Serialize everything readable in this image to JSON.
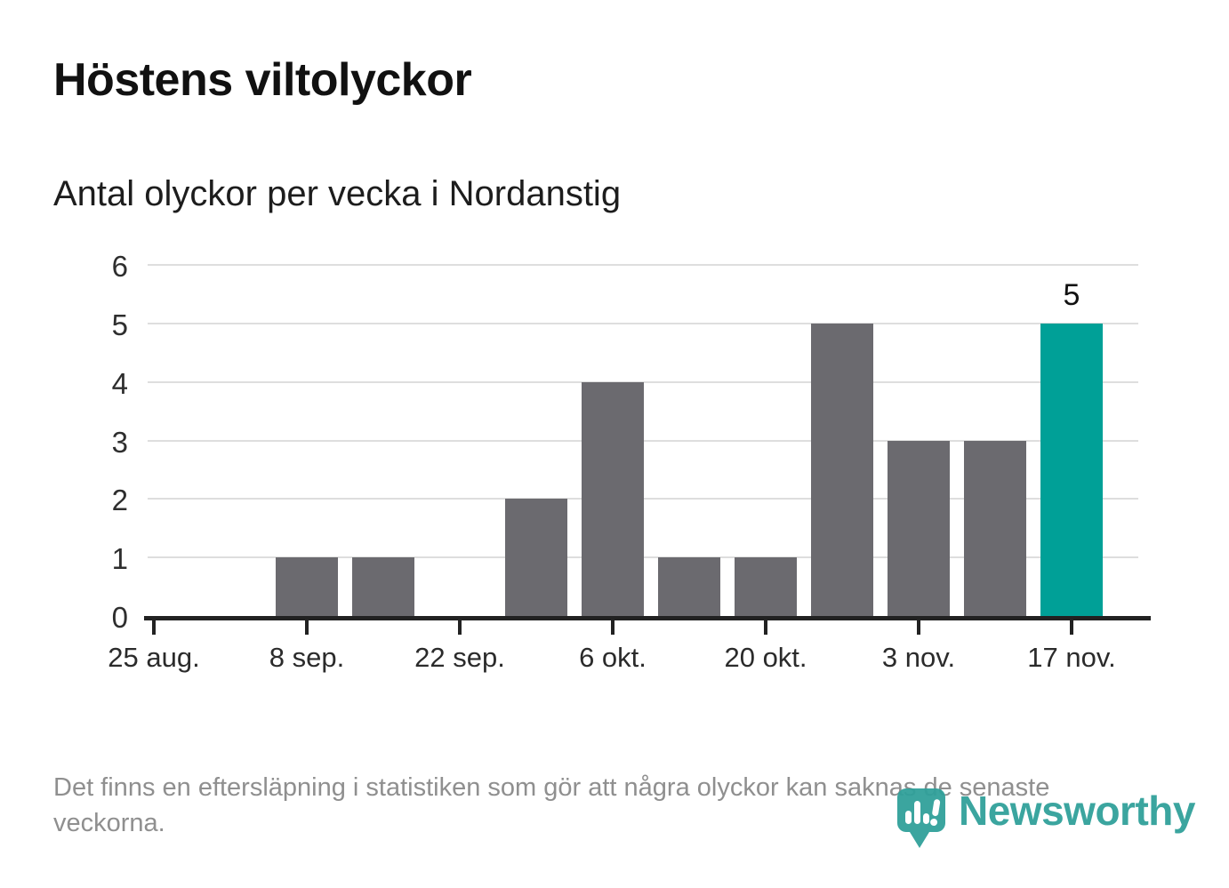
{
  "header": {
    "title": "Höstens viltolyckor",
    "subtitle": "Antal olyckor per vecka i Nordanstig"
  },
  "footer": {
    "note": "Det finns en eftersläpning i statistiken som gör att några olyckor kan saknas de senaste veckorna.",
    "logo_text": "Newsworthy"
  },
  "colors": {
    "bar": "#6b6a6f",
    "highlight": "#00a097",
    "logo_teal": "#2fa09a",
    "grid": "#dedede",
    "axis": "#222222"
  },
  "chart_data": {
    "type": "bar",
    "title": "Höstens viltolyckor",
    "subtitle": "Antal olyckor per vecka i Nordanstig",
    "unit": "olyckor per vecka",
    "n_bars": 13,
    "values": [
      0,
      0,
      1,
      1,
      0,
      2,
      4,
      1,
      1,
      5,
      3,
      3,
      5
    ],
    "x_tick_labels": [
      "25 aug.",
      "8 sep.",
      "22 sep.",
      "6 okt.",
      "20 okt.",
      "3 nov.",
      "17 nov."
    ],
    "x_tick_every": 2,
    "y_ticks": [
      0,
      1,
      2,
      3,
      4,
      5,
      6
    ],
    "ylim": [
      0,
      6
    ],
    "grid": "horizontal",
    "legend": "none",
    "highlight_index": 12,
    "annotation": {
      "index": 12,
      "label": "5"
    }
  }
}
